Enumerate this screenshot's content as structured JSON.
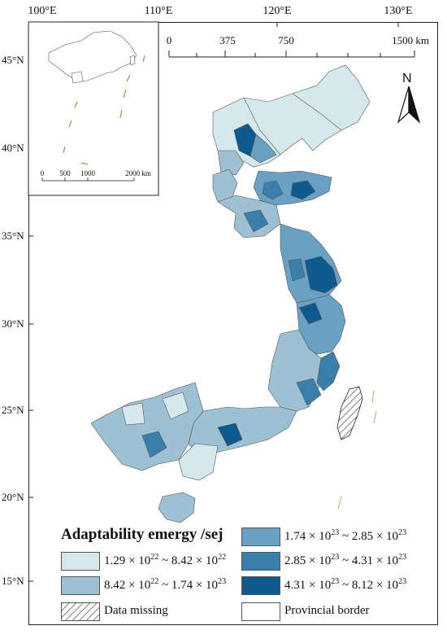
{
  "map": {
    "top_ticks": [
      "100°E",
      "110°E",
      "120°E",
      "130°E"
    ],
    "left_ticks": [
      "45°N",
      "40°N",
      "35°N",
      "30°N",
      "25°N",
      "20°N",
      "15°N"
    ],
    "scale_bar": [
      "0",
      "375",
      "750",
      "1500 km"
    ],
    "inset_scale_bar": [
      "0",
      "500",
      "1000",
      "2000 km"
    ],
    "north_arrow": "N"
  },
  "legend": {
    "title": "Adaptability emergy /sej",
    "classes": [
      {
        "low_mant": "1.29",
        "low_exp": "22",
        "high_mant": "8.42",
        "high_exp": "22",
        "color": "#d4e8ee"
      },
      {
        "low_mant": "8.42",
        "low_exp": "22",
        "high_mant": "1.74",
        "high_exp": "23",
        "color": "#9dc0d3"
      },
      {
        "low_mant": "1.74",
        "low_exp": "23",
        "high_mant": "2.85",
        "high_exp": "23",
        "color": "#6aa1c2"
      },
      {
        "low_mant": "2.85",
        "low_exp": "23",
        "high_mant": "4.31",
        "high_exp": "23",
        "color": "#3a7fab"
      },
      {
        "low_mant": "4.31",
        "low_exp": "23",
        "high_mant": "8.12",
        "high_exp": "23",
        "color": "#0e5a8c"
      }
    ],
    "data_missing": "Data missing",
    "provincial_border": "Provincial border"
  }
}
